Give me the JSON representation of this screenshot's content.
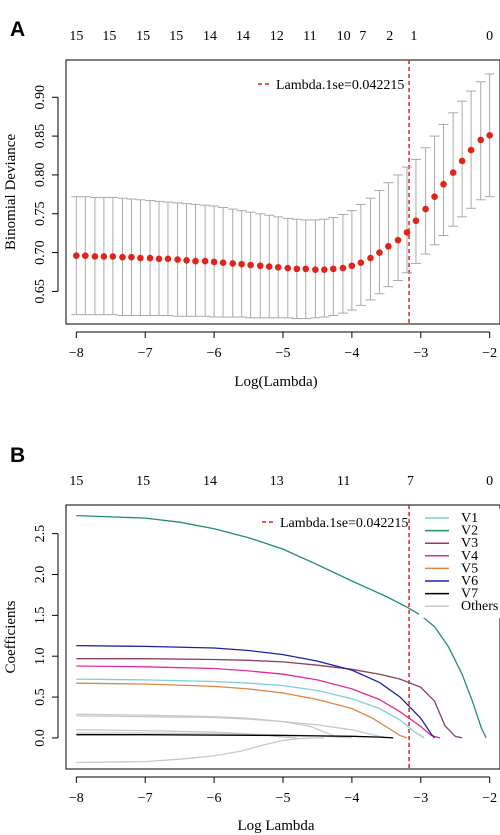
{
  "panel_labels": [
    "A",
    "B"
  ],
  "chart_data": [
    {
      "type": "scatter",
      "panel": "A",
      "xlabel": "Log(Lambda)",
      "ylabel": "Binomial Deviance",
      "xlim": [
        -8.15,
        -1.85
      ],
      "ylim": [
        0.608,
        0.948
      ],
      "x_ticks": [
        -8,
        -7,
        -6,
        -5,
        -4,
        -3,
        -2
      ],
      "x_tick_labels": [
        "−8",
        "−7",
        "−6",
        "−5",
        "−4",
        "−3",
        "−2"
      ],
      "y_ticks": [
        0.65,
        0.7,
        0.75,
        0.8,
        0.85,
        0.9
      ],
      "y_tick_labels": [
        "0.65",
        "0.70",
        "0.75",
        "0.80",
        "0.85",
        "0.90"
      ],
      "top_axis_labels": [
        "15",
        "15",
        "15",
        "15",
        "14",
        "14",
        "12",
        "11",
        "10",
        "7",
        "2",
        "1",
        "0"
      ],
      "top_axis_x": [
        -8.0,
        -7.52,
        -7.03,
        -6.55,
        -6.06,
        -5.58,
        -5.09,
        -4.61,
        -4.12,
        -3.84,
        -3.45,
        -3.1,
        -2.0
      ],
      "grid": false,
      "legend": {
        "position": "top-right",
        "entries": [
          "Lambda.1se=0.042215"
        ]
      },
      "vline": {
        "x": -3.17,
        "label": "Lambda.1se=0.042215"
      },
      "x": [
        -8.0,
        -7.87,
        -7.73,
        -7.6,
        -7.47,
        -7.33,
        -7.2,
        -7.07,
        -6.93,
        -6.8,
        -6.67,
        -6.53,
        -6.4,
        -6.27,
        -6.13,
        -6.0,
        -5.87,
        -5.73,
        -5.6,
        -5.47,
        -5.33,
        -5.2,
        -5.07,
        -4.93,
        -4.8,
        -4.67,
        -4.53,
        -4.4,
        -4.27,
        -4.13,
        -4.0,
        -3.87,
        -3.73,
        -3.6,
        -3.47,
        -3.33,
        -3.2,
        -3.07,
        -2.93,
        -2.8,
        -2.67,
        -2.53,
        -2.4,
        -2.27,
        -2.13,
        -2.0
      ],
      "y": [
        0.696,
        0.696,
        0.695,
        0.695,
        0.695,
        0.694,
        0.694,
        0.693,
        0.693,
        0.692,
        0.692,
        0.691,
        0.69,
        0.689,
        0.689,
        0.688,
        0.687,
        0.686,
        0.685,
        0.684,
        0.683,
        0.682,
        0.681,
        0.68,
        0.679,
        0.679,
        0.678,
        0.678,
        0.679,
        0.68,
        0.683,
        0.687,
        0.693,
        0.7,
        0.708,
        0.716,
        0.726,
        0.741,
        0.756,
        0.772,
        0.788,
        0.803,
        0.818,
        0.832,
        0.845,
        0.851
      ],
      "error_low": [
        0.62,
        0.62,
        0.62,
        0.62,
        0.62,
        0.619,
        0.619,
        0.619,
        0.619,
        0.619,
        0.619,
        0.618,
        0.618,
        0.618,
        0.618,
        0.617,
        0.617,
        0.617,
        0.617,
        0.616,
        0.616,
        0.616,
        0.616,
        0.616,
        0.615,
        0.615,
        0.616,
        0.617,
        0.619,
        0.622,
        0.626,
        0.632,
        0.639,
        0.647,
        0.656,
        0.664,
        0.674,
        0.686,
        0.698,
        0.71,
        0.722,
        0.734,
        0.746,
        0.757,
        0.768,
        0.772
      ],
      "error_high": [
        0.772,
        0.772,
        0.771,
        0.771,
        0.771,
        0.77,
        0.769,
        0.768,
        0.767,
        0.766,
        0.765,
        0.764,
        0.763,
        0.762,
        0.761,
        0.76,
        0.758,
        0.756,
        0.754,
        0.752,
        0.75,
        0.748,
        0.746,
        0.744,
        0.743,
        0.742,
        0.742,
        0.743,
        0.745,
        0.749,
        0.754,
        0.762,
        0.77,
        0.78,
        0.79,
        0.8,
        0.81,
        0.82,
        0.835,
        0.85,
        0.865,
        0.88,
        0.895,
        0.908,
        0.92,
        0.93
      ]
    },
    {
      "type": "line",
      "panel": "B",
      "xlabel": "Log Lambda",
      "ylabel": "Coefficients",
      "xlim": [
        -8.15,
        -1.85
      ],
      "ylim": [
        -0.38,
        2.85
      ],
      "x_ticks": [
        -8,
        -7,
        -6,
        -5,
        -4,
        -3,
        -2
      ],
      "x_tick_labels": [
        "−8",
        "−7",
        "−6",
        "−5",
        "−4",
        "−3",
        "−2"
      ],
      "y_ticks": [
        0.0,
        0.5,
        1.0,
        1.5,
        2.0,
        2.5
      ],
      "y_tick_labels": [
        "0.0",
        "0.5",
        "1.0",
        "1.5",
        "2.0",
        "2.5"
      ],
      "top_axis_labels": [
        "15",
        "15",
        "14",
        "13",
        "11",
        "7",
        "0"
      ],
      "top_axis_x": [
        -8.0,
        -7.03,
        -6.06,
        -5.09,
        -4.12,
        -3.15,
        -2.0
      ],
      "grid": false,
      "legend": {
        "position": "top-right",
        "entries": [
          "V1",
          "V2",
          "V3",
          "V4",
          "V5",
          "V6",
          "V7",
          "Others"
        ]
      },
      "vline": {
        "x": -3.17,
        "label": "Lambda.1se=0.042215"
      },
      "series": [
        {
          "name": "V1",
          "color": "#7fcce0",
          "x": [
            -8.0,
            -7.0,
            -6.0,
            -5.5,
            -5.0,
            -4.5,
            -4.0,
            -3.6,
            -3.3,
            -3.1,
            -2.95
          ],
          "values": [
            0.72,
            0.71,
            0.69,
            0.67,
            0.64,
            0.58,
            0.48,
            0.36,
            0.22,
            0.08,
            0.0
          ]
        },
        {
          "name": "V2",
          "color": "#1e9161",
          "x": [
            -8.0,
            -7.0,
            -6.5,
            -6.0,
            -5.5,
            -5.0,
            -4.5,
            -4.0,
            -3.5,
            -3.2,
            -3.0,
            -2.8,
            -2.6,
            -2.4,
            -2.25,
            -2.12,
            -2.05
          ],
          "values": [
            2.72,
            2.69,
            2.64,
            2.56,
            2.45,
            2.31,
            2.12,
            1.92,
            1.73,
            1.6,
            1.5,
            1.36,
            1.12,
            0.78,
            0.45,
            0.12,
            0.0
          ]
        },
        {
          "name": "V3",
          "color": "#8b3f61",
          "x": [
            -8.0,
            -7.0,
            -6.0,
            -5.5,
            -5.0,
            -4.5,
            -4.0,
            -3.6,
            -3.3,
            -3.0,
            -2.8,
            -2.65,
            -2.5,
            -2.4
          ],
          "values": [
            0.97,
            0.97,
            0.96,
            0.95,
            0.93,
            0.89,
            0.84,
            0.78,
            0.72,
            0.62,
            0.45,
            0.15,
            0.02,
            0.0
          ]
        },
        {
          "name": "V4",
          "color": "#e12b9b",
          "x": [
            -8.0,
            -7.0,
            -6.0,
            -5.5,
            -5.0,
            -4.5,
            -4.0,
            -3.6,
            -3.3,
            -3.0,
            -2.85,
            -2.72
          ],
          "values": [
            0.88,
            0.87,
            0.85,
            0.82,
            0.78,
            0.71,
            0.6,
            0.47,
            0.32,
            0.14,
            0.03,
            0.0
          ]
        },
        {
          "name": "V5",
          "color": "#e08642",
          "x": [
            -8.0,
            -7.0,
            -6.0,
            -5.5,
            -5.0,
            -4.5,
            -4.0,
            -3.7,
            -3.45,
            -3.3,
            -3.2
          ],
          "values": [
            0.67,
            0.66,
            0.63,
            0.6,
            0.55,
            0.47,
            0.36,
            0.24,
            0.11,
            0.03,
            0.0
          ]
        },
        {
          "name": "V6",
          "color": "#1a22a8",
          "x": [
            -8.0,
            -7.0,
            -6.0,
            -5.5,
            -5.0,
            -4.5,
            -4.0,
            -3.6,
            -3.3,
            -3.0,
            -2.85,
            -2.8
          ],
          "values": [
            1.13,
            1.12,
            1.1,
            1.07,
            1.02,
            0.94,
            0.83,
            0.68,
            0.5,
            0.24,
            0.05,
            0.0
          ]
        },
        {
          "name": "V7",
          "color": "#000000",
          "x": [
            -8.0,
            -7.0,
            -6.0,
            -5.0,
            -4.5,
            -4.0,
            -3.6,
            -3.4
          ],
          "values": [
            0.04,
            0.04,
            0.035,
            0.03,
            0.025,
            0.02,
            0.01,
            0.0
          ]
        },
        {
          "name": "Others",
          "color": "#c8c8c8",
          "x": [
            -8.0,
            -7.0,
            -6.0,
            -5.5,
            -5.0,
            -4.6,
            -4.3,
            -4.2
          ],
          "values": [
            0.29,
            0.28,
            0.26,
            0.24,
            0.2,
            0.14,
            0.04,
            0.0
          ]
        },
        {
          "name": "Others",
          "color": "#c8c8c8",
          "x": [
            -8.0,
            -7.0,
            -6.0,
            -5.5,
            -5.0,
            -4.5,
            -4.0,
            -3.7,
            -3.5
          ],
          "values": [
            0.27,
            0.26,
            0.25,
            0.23,
            0.2,
            0.16,
            0.1,
            0.04,
            0.0
          ]
        },
        {
          "name": "Others",
          "color": "#c8c8c8",
          "x": [
            -8.0,
            -7.0,
            -6.0,
            -5.5,
            -5.2,
            -5.0,
            -4.8
          ],
          "values": [
            0.1,
            0.09,
            0.07,
            0.05,
            0.03,
            0.01,
            0.0
          ]
        },
        {
          "name": "Others",
          "color": "#c8c8c8",
          "x": [
            -8.0,
            -7.0,
            -6.5,
            -6.0,
            -5.6,
            -5.3,
            -5.0,
            -4.8,
            -4.6,
            -4.4
          ],
          "values": [
            -0.3,
            -0.29,
            -0.26,
            -0.22,
            -0.16,
            -0.09,
            -0.03,
            -0.01,
            0.0,
            0.0
          ]
        },
        {
          "name": "Others",
          "color": "#c8c8c8",
          "x": [
            -8.0,
            -7.0,
            -6.0,
            -5.0,
            -4.5,
            -4.2,
            -4.0
          ],
          "values": [
            0.06,
            0.06,
            0.05,
            0.04,
            0.025,
            0.01,
            0.0
          ]
        }
      ]
    }
  ]
}
